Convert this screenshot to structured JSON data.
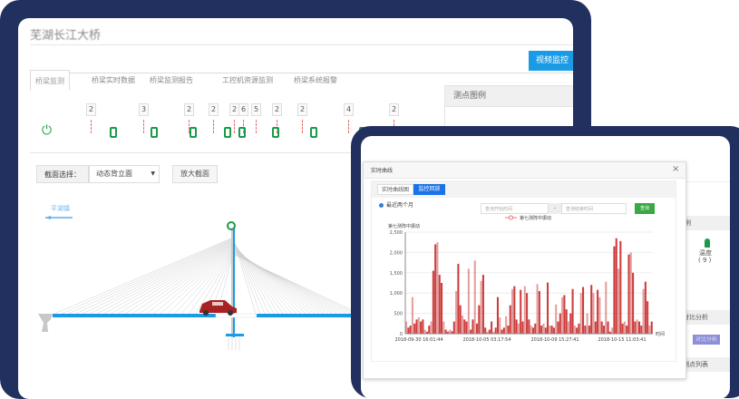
{
  "main_window": {
    "title": "芜湖长江大桥",
    "tabs": [
      {
        "label": "桥梁监测",
        "active": true
      },
      {
        "label": "桥梁实时数据"
      },
      {
        "label": "桥梁监测报告"
      },
      {
        "label": "工控机资源监测"
      },
      {
        "label": "桥梁系统报警"
      }
    ],
    "video_button": "视频监控",
    "sensor_counts": [
      "2",
      "3",
      "2",
      "2",
      "2",
      "6",
      "5",
      "2",
      "2",
      "4",
      "2"
    ],
    "legend_panel_title": "测点图例",
    "section_label": "截面选择：",
    "section_select_value": "动态背立面",
    "zoom_section_button": "放大截面",
    "direction_label": "平湖镇",
    "colors": {
      "accent": "#1a9be6",
      "sensor": "#1a9b4a",
      "frame": "#22305f"
    }
  },
  "modal": {
    "title": "实时曲线",
    "close_icon": "close-icon",
    "tabs": [
      {
        "label": "实时曲线图"
      },
      {
        "label": "监控回放",
        "active": true
      }
    ],
    "radio_label": "最近两个月",
    "start_placeholder": "查询开始时间",
    "separator": "-",
    "end_placeholder": "查询结束时间",
    "query_button": "查询"
  },
  "side_panel": {
    "header_fragment": "例",
    "sensor_label": "温度",
    "sensor_count": "( 9 )",
    "compare_header": "对比分析",
    "compare_button": "对比分析",
    "list_header": "测点列表"
  },
  "chart_data": {
    "type": "bar",
    "ylabel": "第七测阵中振动",
    "xlabel": "时间",
    "legend": "第七测阵中振动",
    "ylim": [
      0,
      2500
    ],
    "yticks": [
      "0",
      "500",
      "1,000",
      "1,500",
      "2,000",
      "2,500"
    ],
    "xticks": [
      "2018-09-30 16:01:44",
      "2018-10-05 03:17:54",
      "2018-10-09 15:27:41",
      "2018-10-15 11:03:41"
    ],
    "color": "#c62828",
    "values": [
      300,
      150,
      200,
      900,
      250,
      350,
      400,
      300,
      350,
      100,
      50,
      200,
      300,
      1550,
      2200,
      2250,
      1450,
      1250,
      300,
      100,
      50,
      100,
      60,
      300,
      1050,
      1720,
      700,
      450,
      350,
      300,
      1600,
      100,
      350,
      1800,
      250,
      700,
      1300,
      1450,
      150,
      50,
      100,
      300,
      50,
      150,
      900,
      400,
      100,
      150,
      430,
      200,
      700,
      1100,
      1170,
      350,
      250,
      1080,
      300,
      1170,
      1000,
      350,
      200,
      150,
      250,
      1220,
      1050,
      200,
      250,
      150,
      1260,
      200,
      200,
      150,
      720,
      300,
      500,
      900,
      950,
      600,
      300,
      500,
      1100,
      200,
      150,
      250,
      1000,
      1150,
      200,
      500,
      200,
      1200,
      1000,
      300,
      1080,
      900,
      300,
      200,
      1280,
      300,
      50,
      150,
      2150,
      2350,
      1600,
      2280,
      250,
      300,
      200,
      1950,
      2000,
      1500,
      300,
      350,
      300,
      200,
      1100,
      1280,
      800,
      200,
      300
    ]
  }
}
